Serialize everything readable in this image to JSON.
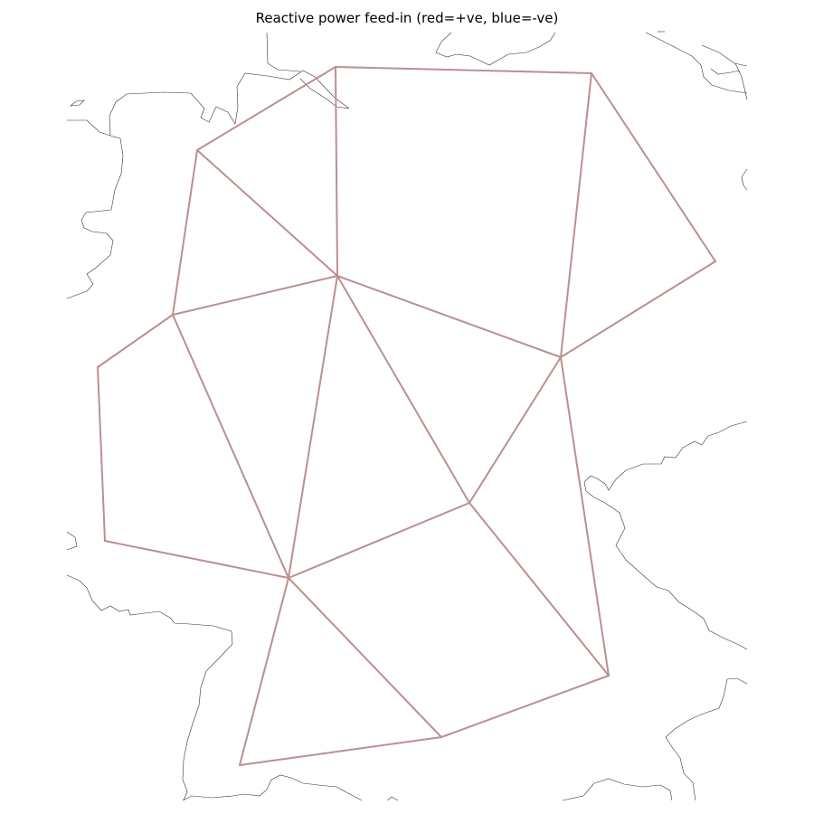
{
  "title": "Reactive power feed-in (red=+ve, blue=-ve)",
  "line_color": "#bc8f8f",
  "buses": [
    "bus-0",
    "bus-1",
    "bus-2",
    "bus-3",
    "bus-4",
    "bus-5",
    "bus-6",
    "bus-7",
    "bus-8",
    "bus-9",
    "bus-10",
    "bus-11",
    "bus-12",
    "bus-13",
    "bus-14"
  ],
  "lines": [
    [
      "bus-0",
      "bus-1"
    ],
    [
      "bus-0",
      "bus-2"
    ],
    [
      "bus-0",
      "bus-3"
    ],
    [
      "bus-1",
      "bus-4"
    ],
    [
      "bus-1",
      "bus-5"
    ],
    [
      "bus-2",
      "bus-3"
    ],
    [
      "bus-2",
      "bus-4"
    ],
    [
      "bus-3",
      "bus-4"
    ],
    [
      "bus-3",
      "bus-6"
    ],
    [
      "bus-3",
      "bus-7"
    ],
    [
      "bus-3",
      "bus-9"
    ],
    [
      "bus-4",
      "bus-6"
    ],
    [
      "bus-4",
      "bus-8"
    ],
    [
      "bus-5",
      "bus-6"
    ],
    [
      "bus-6",
      "bus-9"
    ],
    [
      "bus-6",
      "bus-12"
    ],
    [
      "bus-7",
      "bus-10"
    ],
    [
      "bus-7",
      "bus-9"
    ],
    [
      "bus-8",
      "bus-11"
    ],
    [
      "bus-8",
      "bus-9"
    ],
    [
      "bus-9",
      "bus-12"
    ],
    [
      "bus-9",
      "bus-13"
    ],
    [
      "bus-9",
      "bus-14"
    ],
    [
      "bus-11",
      "bus-10"
    ],
    [
      "bus-10",
      "bus-12"
    ],
    [
      "bus-12",
      "bus-13"
    ],
    [
      "bus-13",
      "bus-14"
    ]
  ]
}
